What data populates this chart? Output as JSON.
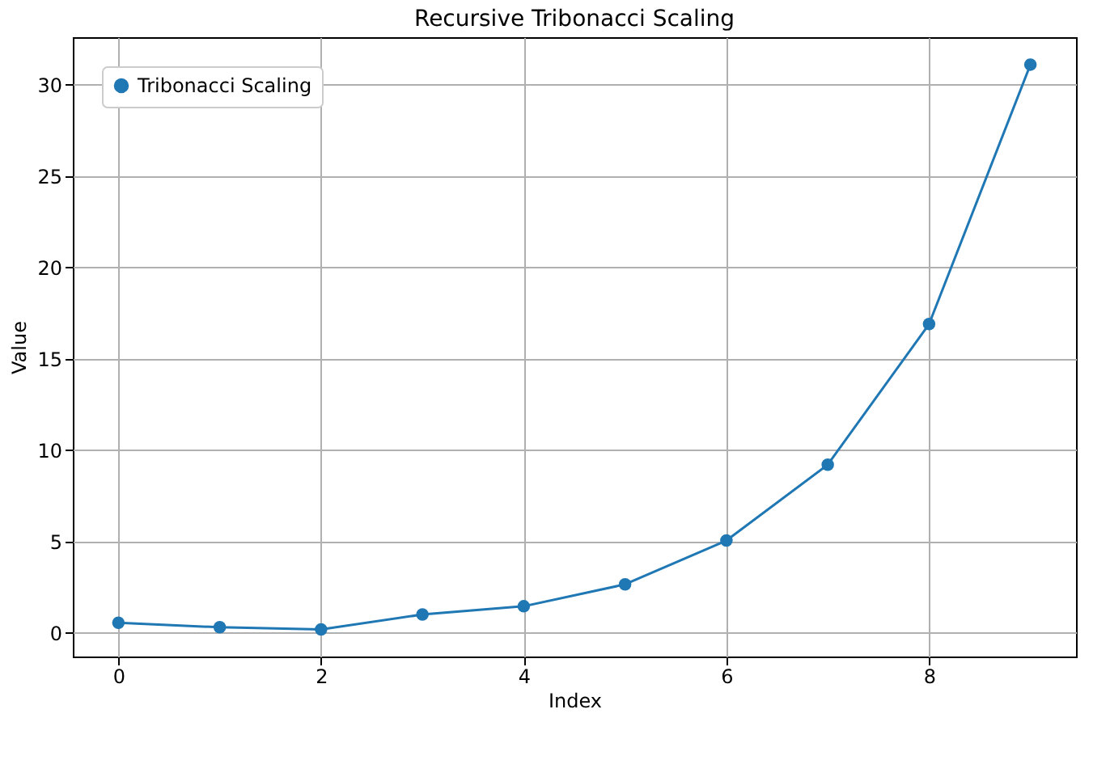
{
  "chart_data": {
    "type": "line",
    "title": "Recursive Tribonacci Scaling",
    "xlabel": "Index",
    "ylabel": "Value",
    "x": [
      0,
      1,
      2,
      3,
      4,
      5,
      6,
      7,
      8,
      9
    ],
    "series": [
      {
        "name": "Tribonacci Scaling",
        "color": "#1f77b4",
        "values": [
          0.55,
          0.3,
          0.18,
          1.0,
          1.45,
          2.65,
          5.05,
          9.2,
          16.9,
          31.1
        ]
      }
    ],
    "xlim": [
      -0.45,
      9.45
    ],
    "ylim": [
      -1.3,
      32.6
    ],
    "xticks": [
      0,
      2,
      4,
      6,
      8
    ],
    "yticks": [
      0,
      5,
      10,
      15,
      20,
      25,
      30
    ],
    "grid": true,
    "legend": "top left",
    "marker": "circle",
    "line_style": "solid"
  }
}
